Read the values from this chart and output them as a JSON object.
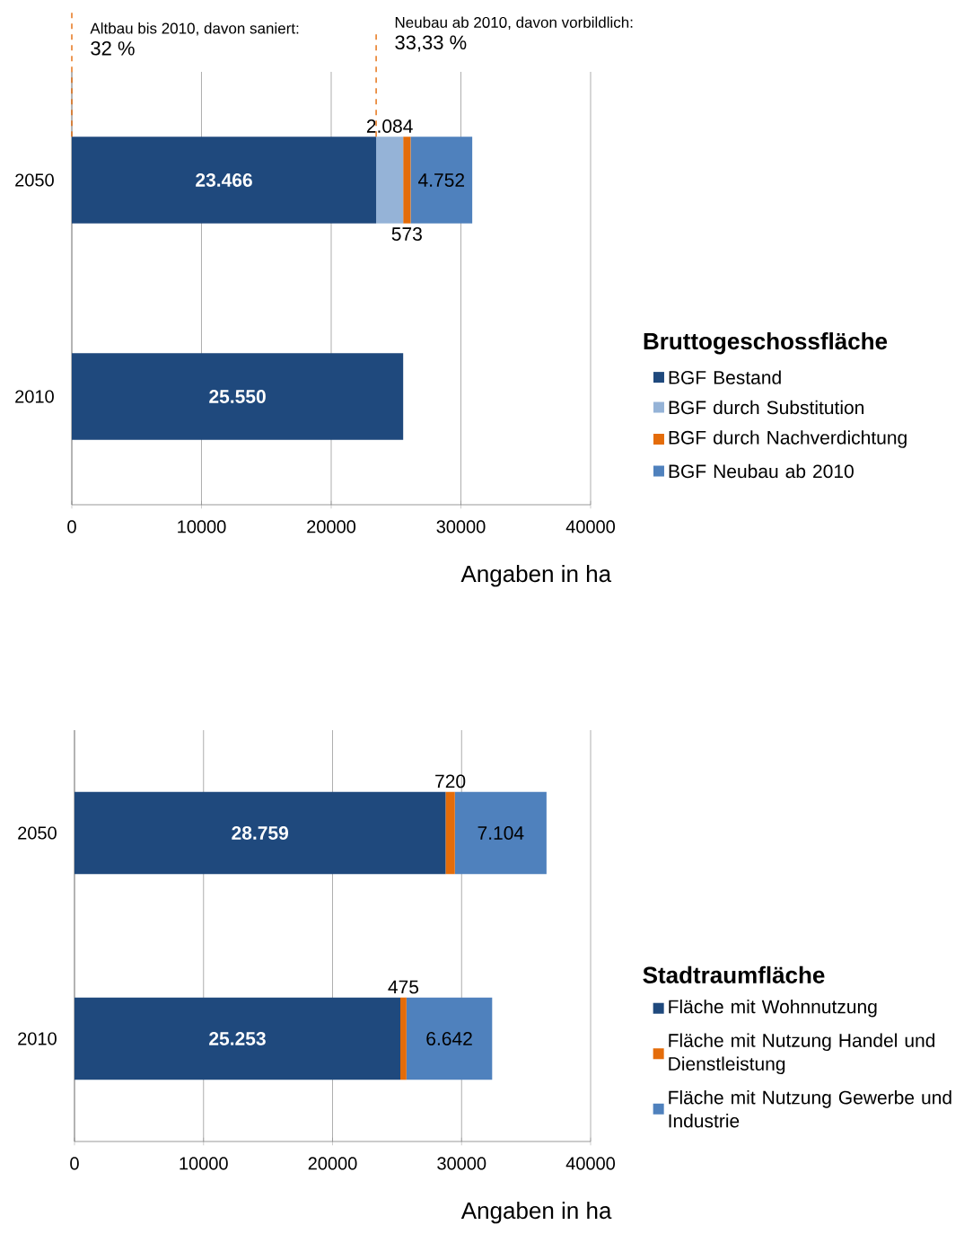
{
  "chart_data": [
    {
      "type": "bar",
      "orientation": "horizontal",
      "stacked": true,
      "categories": [
        "2050",
        "2010"
      ],
      "xlabel": "Angaben in ha",
      "legend_title": "Bruttogeschossfläche",
      "legend": "right",
      "grid": "x",
      "xlim": [
        0,
        40000
      ],
      "xticks": [
        0,
        10000,
        20000,
        30000,
        40000
      ],
      "series": [
        {
          "name": "BGF Bestand",
          "color": "#1f497d",
          "values": [
            23466,
            25550
          ],
          "value_labels": [
            "23.466",
            "25.550"
          ]
        },
        {
          "name": "BGF durch Substitution",
          "color": "#95b3d7",
          "values": [
            2084,
            null
          ],
          "value_labels": [
            "2.084",
            null
          ]
        },
        {
          "name": "BGF durch Nachverdichtung",
          "color": "#e46c0a",
          "values": [
            573,
            null
          ],
          "value_labels": [
            "573",
            null
          ]
        },
        {
          "name": "BGF Neubau ab 2010",
          "color": "#4f81bd",
          "values": [
            4752,
            null
          ],
          "value_labels": [
            "4.752",
            null
          ]
        }
      ],
      "ref_lines": [
        {
          "axis": "x",
          "value": 0,
          "color": "#e46c0a",
          "line_style": "dashed"
        },
        {
          "axis": "x",
          "value": 23466,
          "color": "#e46c0a",
          "line_style": "dashed"
        }
      ],
      "annotations": [
        "Altbau bis 2010, davon saniert:",
        "32 %",
        "Neubau ab 2010, davon vorbildlich:",
        "33,33 %"
      ]
    },
    {
      "type": "bar",
      "orientation": "horizontal",
      "stacked": true,
      "categories": [
        "2050",
        "2010"
      ],
      "xlabel": "Angaben in ha",
      "legend_title": "Stadtraumfläche",
      "legend": "right",
      "grid": "x",
      "xlim": [
        0,
        40000
      ],
      "xticks": [
        0,
        10000,
        20000,
        30000,
        40000
      ],
      "series": [
        {
          "name": "Fläche mit Wohnnutzung",
          "color": "#1f497d",
          "values": [
            28759,
            25253
          ],
          "value_labels": [
            "28.759",
            "25.253"
          ]
        },
        {
          "name": "Fläche mit Nutzung Handel und Dienstleistung",
          "color": "#e46c0a",
          "values": [
            720,
            475
          ],
          "value_labels": [
            "720",
            "475"
          ]
        },
        {
          "name": "Fläche mit Nutzung Gewerbe und Industrie",
          "color": "#4f81bd",
          "values": [
            7104,
            6642
          ],
          "value_labels": [
            "7.104",
            "6.642"
          ]
        }
      ]
    }
  ]
}
